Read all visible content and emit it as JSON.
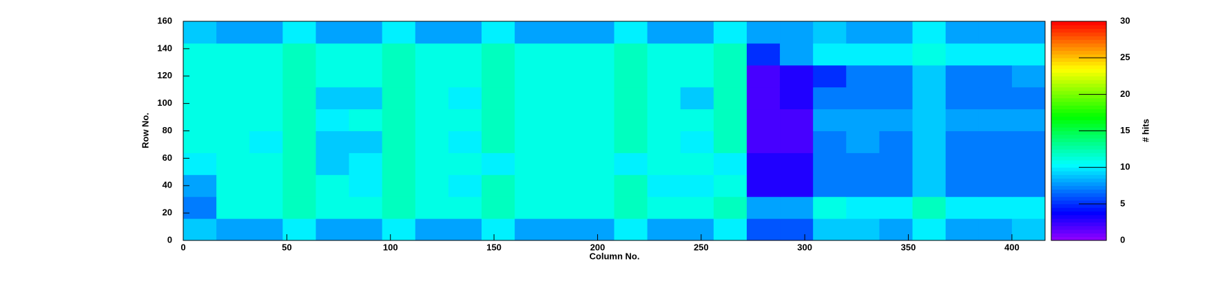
{
  "chart_data": {
    "type": "heatmap",
    "x_label": "Column No.",
    "y_label": "Row No.",
    "z_label": "# hits",
    "xlim": [
      0,
      416
    ],
    "ylim": [
      0,
      160
    ],
    "zlim": [
      0,
      30
    ],
    "xticks": [
      0,
      50,
      100,
      150,
      200,
      250,
      300,
      350,
      400
    ],
    "yticks": [
      0,
      20,
      40,
      60,
      80,
      100,
      120,
      140,
      160
    ],
    "zticks": [
      0,
      5,
      10,
      15,
      20,
      25,
      30
    ],
    "z": [
      [
        9,
        8,
        8,
        10,
        8,
        8,
        10,
        8,
        8,
        10,
        8,
        8,
        8,
        10,
        8,
        8,
        10,
        6,
        6,
        9,
        9,
        8,
        10,
        8,
        8,
        9
      ],
      [
        7,
        11,
        11,
        12,
        11,
        11,
        12,
        11,
        11,
        12,
        11,
        11,
        11,
        12,
        11,
        11,
        12,
        8,
        8,
        11,
        10,
        10,
        12,
        10,
        10,
        10
      ],
      [
        8,
        11,
        11,
        12,
        11,
        10,
        12,
        11,
        10,
        12,
        11,
        11,
        11,
        12,
        10,
        10,
        11,
        3,
        3,
        7,
        7,
        7,
        9,
        7,
        7,
        7
      ],
      [
        10,
        11,
        11,
        12,
        9,
        10,
        12,
        11,
        11,
        10,
        11,
        11,
        11,
        10,
        11,
        11,
        10,
        3,
        3,
        7,
        7,
        7,
        9,
        7,
        7,
        7
      ],
      [
        11,
        11,
        10,
        12,
        9,
        9,
        12,
        11,
        10,
        12,
        11,
        11,
        11,
        12,
        11,
        10,
        12,
        2,
        2,
        7,
        8,
        7,
        9,
        7,
        7,
        7
      ],
      [
        11,
        11,
        11,
        12,
        10,
        11,
        12,
        11,
        11,
        12,
        11,
        11,
        11,
        12,
        11,
        11,
        12,
        2,
        2,
        8,
        8,
        8,
        9,
        8,
        8,
        8
      ],
      [
        11,
        11,
        11,
        12,
        9,
        9,
        12,
        11,
        10,
        12,
        11,
        11,
        11,
        12,
        11,
        9,
        12,
        2,
        3,
        7,
        7,
        7,
        9,
        7,
        7,
        7
      ],
      [
        11,
        11,
        11,
        12,
        11,
        11,
        12,
        11,
        11,
        12,
        11,
        11,
        11,
        12,
        11,
        11,
        12,
        2,
        3,
        5,
        7,
        7,
        9,
        7,
        7,
        8
      ],
      [
        11,
        11,
        11,
        12,
        11,
        11,
        12,
        11,
        11,
        12,
        11,
        11,
        11,
        12,
        11,
        11,
        12,
        5,
        8,
        10,
        10,
        10,
        11,
        10,
        10,
        10
      ],
      [
        9,
        8,
        8,
        10,
        8,
        8,
        10,
        8,
        8,
        10,
        8,
        8,
        8,
        10,
        8,
        8,
        10,
        8,
        8,
        9,
        8,
        8,
        10,
        8,
        8,
        8
      ]
    ]
  }
}
